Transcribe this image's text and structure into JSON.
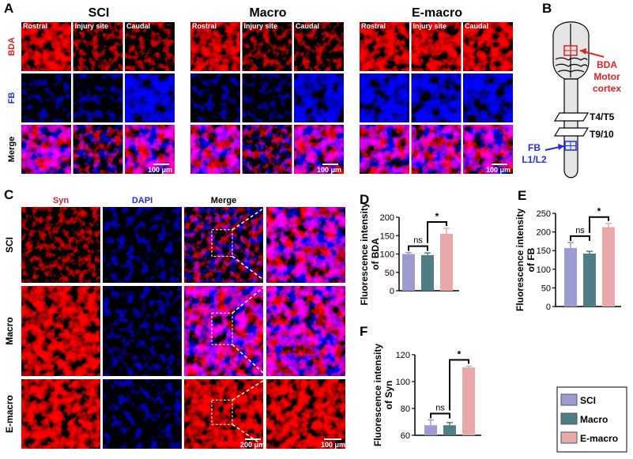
{
  "panel_a": {
    "label": "A",
    "groups": [
      "SCI",
      "Macro",
      "E-macro"
    ],
    "columns": [
      "Rostral",
      "Injury site",
      "Caudal"
    ],
    "rows": [
      "BDA",
      "FB",
      "Merge"
    ],
    "scale_bar": "100 μm"
  },
  "panel_b": {
    "label": "B",
    "tracer_1": "BDA",
    "site_1": [
      "Motor",
      "cortex"
    ],
    "levels": [
      "T4/T5",
      "T9/10"
    ],
    "tracer_2": "FB",
    "site_2": "L1/L2"
  },
  "panel_c": {
    "label": "C",
    "columns": [
      "Syn",
      "DAPI",
      "Merge"
    ],
    "rows": [
      "SCI",
      "Macro",
      "E-macro"
    ],
    "scale_bars": [
      "200 μm",
      "100 μm"
    ]
  },
  "chart_data": [
    {
      "type": "bar",
      "label": "D",
      "ylabel": [
        "Fluorescence intensity",
        "of BDA"
      ],
      "values": [
        100,
        97,
        155
      ],
      "errors": [
        4,
        6,
        15
      ],
      "ylim": [
        0,
        200
      ],
      "yticks": [
        0,
        50,
        100,
        150,
        200
      ],
      "annotations": [
        "ns",
        "*"
      ]
    },
    {
      "type": "bar",
      "label": "E",
      "ylabel": [
        "Fluorescence intensity",
        "of FB"
      ],
      "values": [
        157,
        142,
        213
      ],
      "errors": [
        15,
        6,
        10
      ],
      "ylim": [
        0,
        250
      ],
      "yticks": [
        0,
        50,
        100,
        150,
        200,
        250
      ],
      "annotations": [
        "ns",
        "*"
      ]
    },
    {
      "type": "bar",
      "label": "F",
      "ylabel": [
        "Fluorescence intensity",
        "of Syn"
      ],
      "values": [
        67.5,
        67.5,
        110.5
      ],
      "errors": [
        4,
        2,
        1
      ],
      "ylim": [
        60,
        120
      ],
      "yticks": [
        60,
        80,
        100,
        120
      ],
      "annotations": [
        "ns",
        "*"
      ]
    }
  ],
  "legend": {
    "entries": [
      {
        "name": "SCI",
        "color": "#9b9bd0"
      },
      {
        "name": "Macro",
        "color": "#4f7e86"
      },
      {
        "name": "E-macro",
        "color": "#e9a9aa"
      }
    ]
  }
}
